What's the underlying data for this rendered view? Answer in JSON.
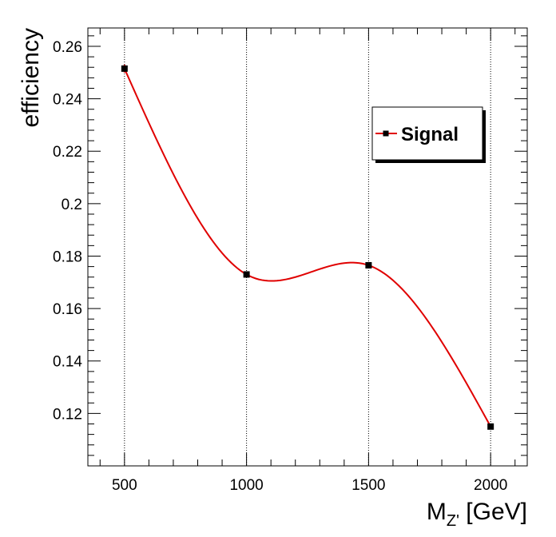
{
  "chart_data": {
    "type": "line",
    "x": [
      500,
      1000,
      1500,
      2000
    ],
    "series": [
      {
        "name": "Signal",
        "values": [
          0.2515,
          0.173,
          0.1765,
          0.115
        ],
        "errors": [
          0.0015,
          0.001,
          0.001,
          0.001
        ]
      }
    ],
    "xlabel": {
      "main": "M",
      "sub": "Z'",
      "rest": " [GeV]"
    },
    "ylabel": "efficiency",
    "xlim": [
      350,
      2150
    ],
    "ylim": [
      0.1,
      0.267
    ],
    "xticks": [
      500,
      1000,
      1500,
      2000
    ],
    "xtick_labels": [
      "500",
      "1000",
      "1500",
      "2000"
    ],
    "yticks": [
      0.12,
      0.14,
      0.16,
      0.18,
      0.2,
      0.22,
      0.24,
      0.26
    ],
    "ytick_labels": [
      "0.12",
      "0.14",
      "0.16",
      "0.18",
      "0.2",
      "0.22",
      "0.24",
      "0.26"
    ],
    "grid": "x",
    "legend_position": "top-right",
    "line_color": "#e00000",
    "marker_color": "#000000"
  }
}
